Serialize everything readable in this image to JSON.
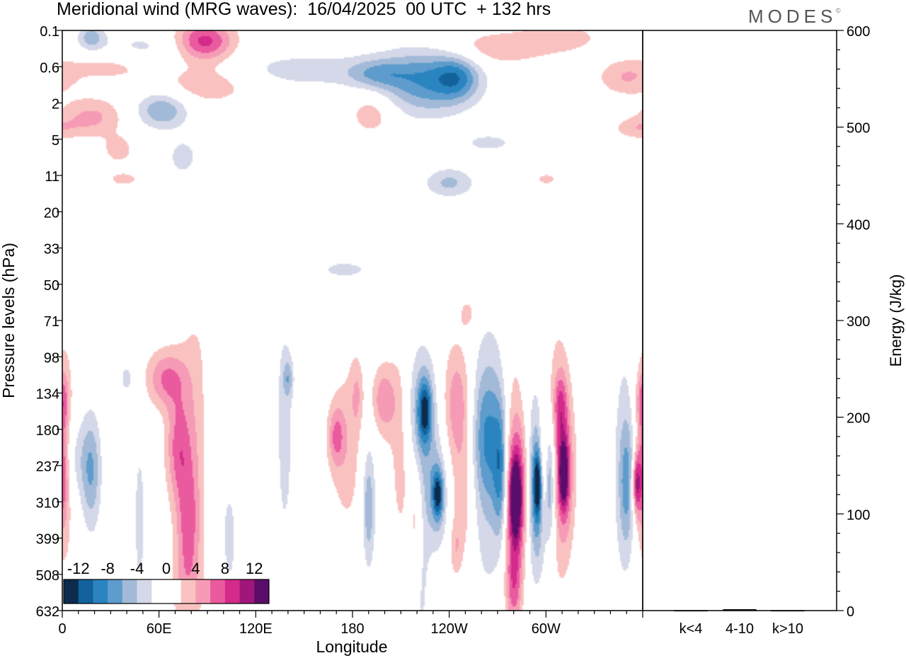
{
  "title": "Meridional wind (MRG waves):  16/04/2025  00 UTC  + 132 hrs",
  "brand": "MODES",
  "brand_mark": "©",
  "colors": {
    "scale": [
      "#0d2b4d",
      "#14629b",
      "#2a84c0",
      "#5d9ccc",
      "#a2bad8",
      "#d4d8e8",
      "#ffffff",
      "#ffffff",
      "#f9c2c0",
      "#f69bb6",
      "#ea5a9f",
      "#d42a8b",
      "#a0167a",
      "#5a0d6a"
    ]
  },
  "chart_data": [
    {
      "type": "heatmap",
      "title": "Meridional wind (MRG waves):  16/04/2025  00 UTC  + 132 hrs",
      "xlabel": "Longitude",
      "ylabel": "Pressure levels (hPa)",
      "x_ticks": [
        "0",
        "60E",
        "120E",
        "180",
        "120W",
        "60W"
      ],
      "x_tick_degrees": [
        0,
        60,
        120,
        180,
        240,
        300
      ],
      "xlim": [
        0,
        360
      ],
      "y_ticks": [
        "0.1",
        "0.6",
        "2",
        "5",
        "11",
        "20",
        "33",
        "50",
        "71",
        "98",
        "134",
        "180",
        "237",
        "310",
        "399",
        "508",
        "632"
      ],
      "colorbar": {
        "tick_labels": [
          "-12",
          "-8",
          "-4",
          "0",
          "4",
          "8",
          "12"
        ],
        "levels": [
          -14,
          -12,
          -10,
          -8,
          -6,
          -4,
          -2,
          0,
          2,
          4,
          6,
          8,
          10,
          12,
          14
        ]
      },
      "blobs": [
        {
          "lon": 18,
          "lev": 0.2,
          "dx": 8,
          "dy": 0.35,
          "v": -5
        },
        {
          "lon": 50,
          "lev": 0.5,
          "dx": 30,
          "dy": 0.5,
          "v": -2.5
        },
        {
          "lon": 88,
          "lev": 0.3,
          "dx": 18,
          "dy": 0.55,
          "v": 9
        },
        {
          "lon": 30,
          "lev": 1.0,
          "dx": 28,
          "dy": 0.4,
          "v": 3
        },
        {
          "lon": 90,
          "lev": 1.5,
          "dx": 30,
          "dy": 0.55,
          "v": 3.5
        },
        {
          "lon": 62,
          "lev": 2.2,
          "dx": 16,
          "dy": 0.5,
          "v": -6
        },
        {
          "lon": 18,
          "lev": 2.4,
          "dx": 20,
          "dy": 0.55,
          "v": 4.5
        },
        {
          "lon": 35,
          "lev": 3.3,
          "dx": 10,
          "dy": 0.4,
          "v": 3
        },
        {
          "lon": 150,
          "lev": 1.1,
          "dx": 50,
          "dy": 0.5,
          "v": -3
        },
        {
          "lon": 195,
          "lev": 1.2,
          "dx": 18,
          "dy": 0.4,
          "v": -4
        },
        {
          "lon": 225,
          "lev": 1.4,
          "dx": 28,
          "dy": 0.9,
          "v": -7.5
        },
        {
          "lon": 245,
          "lev": 1.3,
          "dx": 14,
          "dy": 0.6,
          "v": -6
        },
        {
          "lon": 268,
          "lev": 0.5,
          "dx": 35,
          "dy": 0.5,
          "v": 3.5
        },
        {
          "lon": 310,
          "lev": 0.2,
          "dx": 25,
          "dy": 0.4,
          "v": 3
        },
        {
          "lon": 350,
          "lev": 1.3,
          "dx": 18,
          "dy": 0.5,
          "v": 4
        },
        {
          "lon": 192,
          "lev": 2.3,
          "dx": 14,
          "dy": 0.6,
          "v": 3.5
        },
        {
          "lon": 355,
          "lev": 2.7,
          "dx": 14,
          "dy": 0.3,
          "v": 3
        },
        {
          "lon": 265,
          "lev": 3.1,
          "dx": 20,
          "dy": 0.3,
          "v": -2.5
        },
        {
          "lon": 75,
          "lev": 3.5,
          "dx": 10,
          "dy": 0.55,
          "v": -3
        },
        {
          "lon": 240,
          "lev": 4.2,
          "dx": 15,
          "dy": 0.4,
          "v": -4.5
        },
        {
          "lon": 38,
          "lev": 4.1,
          "dx": 10,
          "dy": 0.2,
          "v": 3
        },
        {
          "lon": 300,
          "lev": 4.1,
          "dx": 8,
          "dy": 0.2,
          "v": 2.5
        },
        {
          "lon": 175,
          "lev": 6.6,
          "dx": 22,
          "dy": 0.35,
          "v": -2.5
        },
        {
          "lon": 252,
          "lev": 7.8,
          "dx": 6,
          "dy": 0.5,
          "v": 2.8
        },
        {
          "lon": 363,
          "lev": 6.3,
          "dx": 12,
          "dy": 0.25,
          "v": -2.3
        },
        {
          "lon": 8,
          "lev": 11.8,
          "dx": 10,
          "dy": 1.2,
          "v": -3
        },
        {
          "lon": 18,
          "lev": 12.2,
          "dx": 6,
          "dy": 1.6,
          "v": -5.5
        },
        {
          "lon": 40,
          "lev": 9.6,
          "dx": 5,
          "dy": 0.5,
          "v": -2.7
        },
        {
          "lon": 48,
          "lev": 13.5,
          "dx": 4,
          "dy": 2.5,
          "v": -2.8
        },
        {
          "lon": 64,
          "lev": 9.6,
          "dx": 12,
          "dy": 0.8,
          "v": 6
        },
        {
          "lon": 72,
          "lev": 11.5,
          "dx": 8,
          "dy": 1.5,
          "v": 6
        },
        {
          "lon": 78,
          "lev": 13.5,
          "dx": 7,
          "dy": 1.5,
          "v": 5
        },
        {
          "lon": 83,
          "lev": 11,
          "dx": 12,
          "dy": 4,
          "v": 3
        },
        {
          "lon": 77,
          "lev": 15.3,
          "dx": 10,
          "dy": 1.3,
          "v": 3.5
        },
        {
          "lon": 94,
          "lev": 11.5,
          "dx": 6,
          "dy": 3.5,
          "v": -2.6
        },
        {
          "lon": 104,
          "lev": 14,
          "dx": 5,
          "dy": 1.8,
          "v": -2.6
        },
        {
          "lon": 138,
          "lev": 11,
          "dx": 6,
          "dy": 3.8,
          "v": -2.8
        },
        {
          "lon": 140,
          "lev": 9.6,
          "dx": 3,
          "dy": 0.5,
          "v": -4
        },
        {
          "lon": 177,
          "lev": 11.5,
          "dx": 12,
          "dy": 2.5,
          "v": 3.2
        },
        {
          "lon": 170,
          "lev": 11.2,
          "dx": 5,
          "dy": 0.8,
          "v": 5
        },
        {
          "lon": 183,
          "lev": 10,
          "dx": 4,
          "dy": 1,
          "v": 3
        },
        {
          "lon": 190,
          "lev": 12.5,
          "dx": 6,
          "dy": 3,
          "v": -2.7
        },
        {
          "lon": 190,
          "lev": 13.2,
          "dx": 3,
          "dy": 1.2,
          "v": -4
        },
        {
          "lon": 199,
          "lev": 10.2,
          "dx": 8,
          "dy": 1,
          "v": 5.5
        },
        {
          "lon": 210,
          "lev": 11.5,
          "dx": 7,
          "dy": 3,
          "v": 3
        },
        {
          "lon": 220,
          "lev": 13.5,
          "dx": 4,
          "dy": 1.5,
          "v": 3.5
        },
        {
          "lon": 223,
          "lev": 10.5,
          "dx": 10,
          "dy": 1.8,
          "v": -5
        },
        {
          "lon": 225,
          "lev": 10.5,
          "dx": 4,
          "dy": 0.8,
          "v": -9
        },
        {
          "lon": 232,
          "lev": 12.8,
          "dx": 7,
          "dy": 1.5,
          "v": -5.5
        },
        {
          "lon": 233,
          "lev": 12.8,
          "dx": 3,
          "dy": 0.6,
          "v": -9
        },
        {
          "lon": 223,
          "lev": 14.5,
          "dx": 5,
          "dy": 3.5,
          "v": -2.6
        },
        {
          "lon": 245,
          "lev": 10.3,
          "dx": 9,
          "dy": 1.7,
          "v": 5.5
        },
        {
          "lon": 249,
          "lev": 13,
          "dx": 7,
          "dy": 1.8,
          "v": 3.5
        },
        {
          "lon": 244,
          "lev": 14.3,
          "dx": 4,
          "dy": 0.8,
          "v": 3
        },
        {
          "lon": 263,
          "lev": 12,
          "dx": 12,
          "dy": 4.5,
          "v": -2.8
        },
        {
          "lon": 262,
          "lev": 11.2,
          "dx": 8,
          "dy": 1.8,
          "v": -5
        },
        {
          "lon": 280,
          "lev": 12.5,
          "dx": 8,
          "dy": 4.5,
          "v": 3.5
        },
        {
          "lon": 281,
          "lev": 12.9,
          "dx": 6,
          "dy": 1.8,
          "v": 7
        },
        {
          "lon": 281,
          "lev": 12.9,
          "dx": 3,
          "dy": 0.9,
          "v": 10
        },
        {
          "lon": 280,
          "lev": 15.3,
          "dx": 5,
          "dy": 1.2,
          "v": 5
        },
        {
          "lon": 292,
          "lev": 12.3,
          "dx": 9,
          "dy": 3.5,
          "v": -3
        },
        {
          "lon": 295,
          "lev": 12.7,
          "dx": 5,
          "dy": 1.8,
          "v": -6
        },
        {
          "lon": 295,
          "lev": 12.5,
          "dx": 2.5,
          "dy": 0.8,
          "v": -9
        },
        {
          "lon": 307,
          "lev": 11.8,
          "dx": 10,
          "dy": 4.5,
          "v": 3.2
        },
        {
          "lon": 311,
          "lev": 12.2,
          "dx": 6,
          "dy": 1.8,
          "v": 7
        },
        {
          "lon": 311,
          "lev": 12.2,
          "dx": 2.5,
          "dy": 0.8,
          "v": 10
        },
        {
          "lon": 309,
          "lev": 10.3,
          "dx": 4,
          "dy": 0.9,
          "v": 5
        },
        {
          "lon": 351,
          "lev": 11.5,
          "dx": 10,
          "dy": 4.5,
          "v": -2.6
        },
        {
          "lon": 350,
          "lev": 12.5,
          "dx": 5,
          "dy": 1.8,
          "v": -5.5
        },
        {
          "lon": 360,
          "lev": 11.5,
          "dx": 8,
          "dy": 4.5,
          "v": 3.5
        },
        {
          "lon": 360,
          "lev": 10.2,
          "dx": 4,
          "dy": 0.8,
          "v": 5
        },
        {
          "lon": 360,
          "lev": 12.2,
          "dx": 4,
          "dy": 1.5,
          "v": 6.5
        },
        {
          "lon": 356,
          "lev": 12.5,
          "dx": 2.5,
          "dy": 0.8,
          "v": 9
        },
        {
          "lon": 270,
          "lev": 11.5,
          "dx": 7,
          "dy": 2.5,
          "v": -3
        },
        {
          "lon": 285,
          "lev": 12.5,
          "dx": 6,
          "dy": 2,
          "v": 3.5
        },
        {
          "lon": 300,
          "lev": 12.8,
          "dx": 8,
          "dy": 2,
          "v": -3
        },
        {
          "lon": 272,
          "lev": 12.2,
          "dx": 4,
          "dy": 1.8,
          "v": -6
        },
        {
          "lon": 303,
          "lev": 12.4,
          "dx": 3,
          "dy": 1.5,
          "v": -5
        },
        {
          "lon": 298,
          "lev": 12.3,
          "dx": 3,
          "dy": 1.5,
          "v": 7
        }
      ]
    },
    {
      "type": "bar",
      "ylabel": "Energy (J/kg)",
      "categories": [
        "k<4",
        "4-10",
        "k>10"
      ],
      "values": [
        0,
        1,
        0
      ],
      "ylim": [
        0,
        600
      ],
      "y_ticks": [
        "0",
        "100",
        "200",
        "300",
        "400",
        "500",
        "600"
      ]
    }
  ]
}
